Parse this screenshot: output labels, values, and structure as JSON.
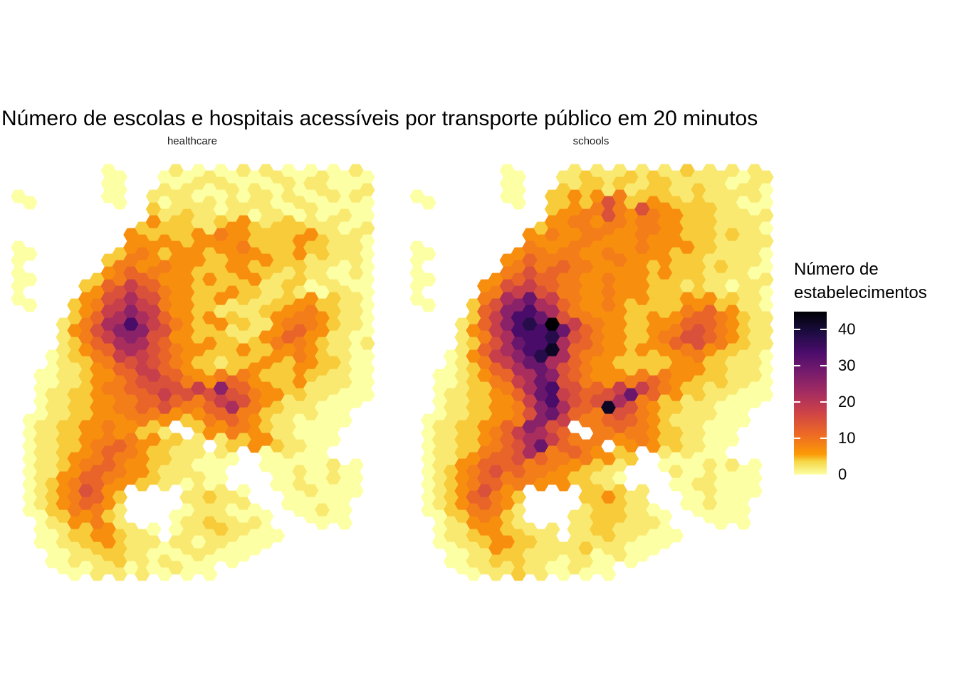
{
  "title": "Número de escolas e hospitais acessíveis por transporte público em 20 minutos",
  "facets": [
    {
      "label": "healthcare"
    },
    {
      "label": "schools"
    }
  ],
  "legend": {
    "title_line1": "Número de",
    "title_line2": "estabelecimentos",
    "ticks": [
      40,
      30,
      20,
      10,
      0
    ],
    "vmax": 45
  },
  "colormap": {
    "name": "inferno-reversed",
    "stops": [
      {
        "p": 0.0,
        "c": "#000004"
      },
      {
        "p": 0.125,
        "c": "#1B0C41"
      },
      {
        "p": 0.25,
        "c": "#4B0C6B"
      },
      {
        "p": 0.375,
        "c": "#781C6D"
      },
      {
        "p": 0.5,
        "c": "#A52C60"
      },
      {
        "p": 0.625,
        "c": "#CF4446"
      },
      {
        "p": 0.75,
        "c": "#ED6925"
      },
      {
        "p": 0.875,
        "c": "#FB9A06"
      },
      {
        "p": 0.92,
        "c": "#F6D746"
      },
      {
        "p": 1.0,
        "c": "#FCFFA4"
      }
    ]
  },
  "hex_grid": {
    "cols": 32,
    "rows": 32,
    "col_spacing": 15.8,
    "row_spacing": 18.0,
    "hex_radius": 10.8,
    "levels": {
      "1": 0,
      "2": 2,
      "3": 4,
      "4": 7,
      "5": 9,
      "6": 12,
      "7": 15,
      "8": 18,
      "9": 22,
      "A": 26,
      "B": 30,
      "C": 34,
      "D": 38,
      "E": 42,
      "F": 45
    }
  },
  "chart_data": {
    "type": "hexbin_map",
    "facet_names": [
      "healthcare",
      "schools"
    ],
    "value_label": "Número de estabelecimentos",
    "value_range": [
      0,
      45
    ],
    "healthcare_rows": [
      "........11...1211211212211121121",
      "........11...2122122121121221112",
      "11......11..21221212122122112121",
      "............32232212212211211211",
      "...........343332234432333222112",
      "..........4434334454433334432221",
      "11.......34543444344543334332221",
      "1.......355445444334434333222121",
      "11.....3456654443433443223221121",
      "1.....34678765443334332232112211",
      "11...345789875443342322334433221",
      ".....34689A986443423223445543221",
      "....24579ACA87543342322456543221",
      "....235689A976443433234565432212",
      "...12345689876544333433445432211",
      "...12234567876543323344334433211",
      "..112234456787654456543334322211",
      "..1223345566787787A7654433222111",
      "..12233445566765568975432221111.",
      ".11223344455544345665432212111..",
      ".1223344544332..3445543221111...",
      ".1223345565443322.23344322111...",
      ".1223445655433222121..112111....",
      ".122345665443222111...111211211.",
      ".123456654433221211....11211211.",
      ".123457643.....223221...1121111.",
      ".123456542.....1222121..111211..",
      "..12344532....122322121...1111..",
      "..11233443221.1222322111........",
      "..112233432221221221111.........",
      "...112223322121121111...........",
      "....11122212112111.............."
    ],
    "schools_rows": [
      "........11...2232223232232222122",
      "........11...3233232233223221221",
      "11......11..33434753343323222121",
      "............34455754754433322212",
      "...........344554554554433322221",
      "..........4454455444544433323222",
      "11.......45545544544544343322221",
      "1.......456556554454434333232221",
      "11.....4567665544544434333222212",
      "1.....45788765544544433323221221",
      "11...3579AB986544543433344433221",
      ".....368ACCB97554443343456654322",
      "....2468ACDCFB865443344567654322",
      "....23579BCCD9765443345677654322",
      "...124689ACDE9655443434455433221",
      "...1235689BB97654433333444332221",
      "..112345689BA7654445565443332221",
      "..122334569BC876678B865433222111",
      "..122334458AC9767E9754332221111.",
      ".1122334457AB86556765432222111..",
      ".122334568A976..5565543322111...",
      ".1223345679B86555.44543322111...",
      ".1223456679655654433..212111....",
      ".123456766555443322...121121211.",
      ".123456655544433221....11221111.",
      ".123467543.....334322...1121111.",
      ".123456542.....2333221..112111..",
      "..12345432....223332221...1111..",
      "..12234433222.2233222111........",
      "..112234433222232221111.........",
      "...112233322212211211...........",
      "....11222322112111.............."
    ]
  }
}
